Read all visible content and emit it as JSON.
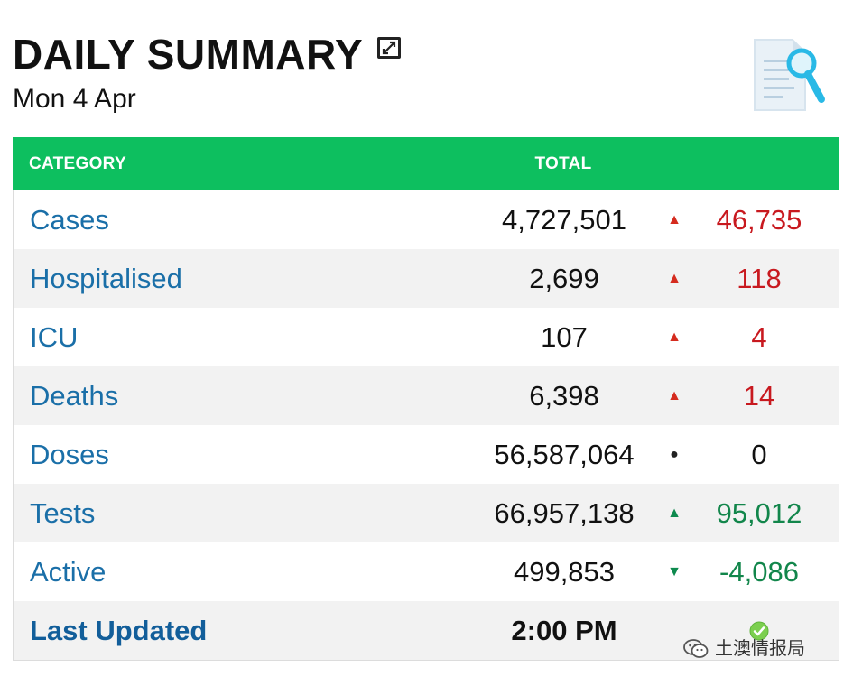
{
  "header": {
    "title": "DAILY SUMMARY",
    "date": "Mon 4 Apr",
    "expand_icon": "expand-icon",
    "doc_icon": "document-search-icon"
  },
  "table": {
    "columns": {
      "category": "CATEGORY",
      "total": "TOTAL"
    },
    "rows": [
      {
        "label": "Cases",
        "total": "4,727,501",
        "delta": "46,735",
        "trend": "up"
      },
      {
        "label": "Hospitalised",
        "total": "2,699",
        "delta": "118",
        "trend": "up"
      },
      {
        "label": "ICU",
        "total": "107",
        "delta": "4",
        "trend": "up"
      },
      {
        "label": "Deaths",
        "total": "6,398",
        "delta": "14",
        "trend": "up"
      },
      {
        "label": "Doses",
        "total": "56,587,064",
        "delta": "0",
        "trend": "none"
      },
      {
        "label": "Tests",
        "total": "66,957,138",
        "delta": "95,012",
        "trend": "up-good"
      },
      {
        "label": "Active",
        "total": "499,853",
        "delta": "-4,086",
        "trend": "down-good"
      }
    ],
    "last_updated": {
      "label": "Last Updated",
      "time": "2:00 PM",
      "status_icon": "check-circle-icon"
    }
  },
  "watermark": {
    "text": "土澳情报局",
    "icon": "wechat-icon"
  },
  "colors": {
    "header_green": "#0dbf5f",
    "label_blue": "#1a6fa8",
    "up_red": "#d52b1e",
    "down_green": "#0e8a4e"
  }
}
